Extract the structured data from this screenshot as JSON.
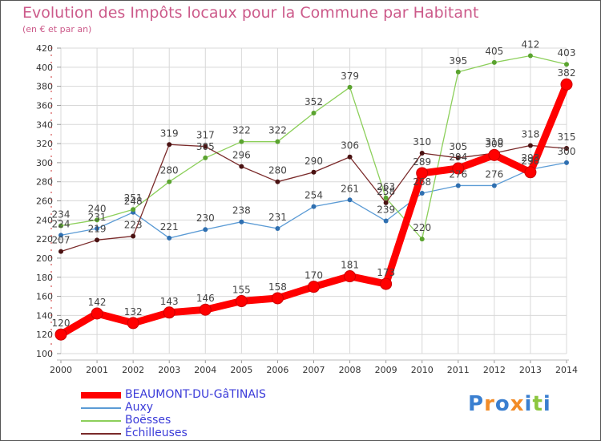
{
  "chart_data": {
    "type": "line",
    "title": "Evolution des Impôts locaux pour la Commune par Habitant",
    "subtitle": "(en € et par an)",
    "xlabel": "",
    "ylabel": "",
    "ylim": [
      100,
      420
    ],
    "yticks": [
      100,
      120,
      140,
      160,
      180,
      200,
      220,
      240,
      260,
      280,
      300,
      320,
      340,
      360,
      380,
      400,
      420
    ],
    "x": [
      "2000",
      "2001",
      "2002",
      "2003",
      "2004",
      "2005",
      "2006",
      "2007",
      "2008",
      "2009",
      "2010",
      "2011",
      "2012",
      "2013",
      "2014"
    ],
    "grid": true,
    "legend_position": "bottom-left",
    "series": [
      {
        "name": "Auxy",
        "color": "#5b9bd5",
        "values": [
          224,
          231,
          248,
          221,
          230,
          238,
          231,
          254,
          261,
          239,
          268,
          276,
          276,
          293,
          300
        ],
        "labels": [
          "224",
          "231",
          "248",
          "221",
          "230",
          "238",
          "231",
          "254",
          "261",
          "239",
          "268",
          "276",
          "276",
          "293",
          "300"
        ]
      },
      {
        "name": "Boësses",
        "color": "#8ccf5a",
        "values": [
          234,
          240,
          251,
          280,
          305,
          322,
          322,
          352,
          379,
          263,
          220,
          395,
          405,
          412,
          403
        ],
        "labels": [
          "234",
          "240",
          "251",
          "280",
          "305",
          "322",
          "322",
          "352",
          "379",
          "263",
          "220",
          "395",
          "405",
          "412",
          "403"
        ]
      },
      {
        "name": "Échilleuses",
        "color": "#7a2a2a",
        "values": [
          207,
          219,
          223,
          319,
          317,
          296,
          280,
          290,
          306,
          258,
          310,
          305,
          310,
          318,
          315
        ],
        "labels": [
          "207",
          "219",
          "223",
          "319",
          "317",
          "296",
          "280",
          "290",
          "306",
          "258",
          "310",
          "305",
          "310",
          "318",
          "315"
        ]
      },
      {
        "name": "BEAUMONT-DU-GâTINAIS",
        "color": "#ff0000",
        "values": [
          120,
          142,
          132,
          143,
          146,
          155,
          158,
          170,
          181,
          173,
          289,
          294,
          308,
          290,
          382
        ],
        "labels": [
          "120",
          "142",
          "132",
          "143",
          "146",
          "155",
          "158",
          "170",
          "181",
          "173",
          "289",
          "294",
          "308",
          "290",
          "382"
        ]
      }
    ],
    "legend": [
      "BEAUMONT-DU-GâTINAIS",
      "Auxy",
      "Boësses",
      "Échilleuses"
    ]
  },
  "logo": {
    "text": "Proxiti",
    "colors": [
      "#3a7fd0",
      "#f28c28",
      "#3a7fd0",
      "#f28c28",
      "#3a7fd0",
      "#8cc63f",
      "#3a7fd0"
    ]
  }
}
